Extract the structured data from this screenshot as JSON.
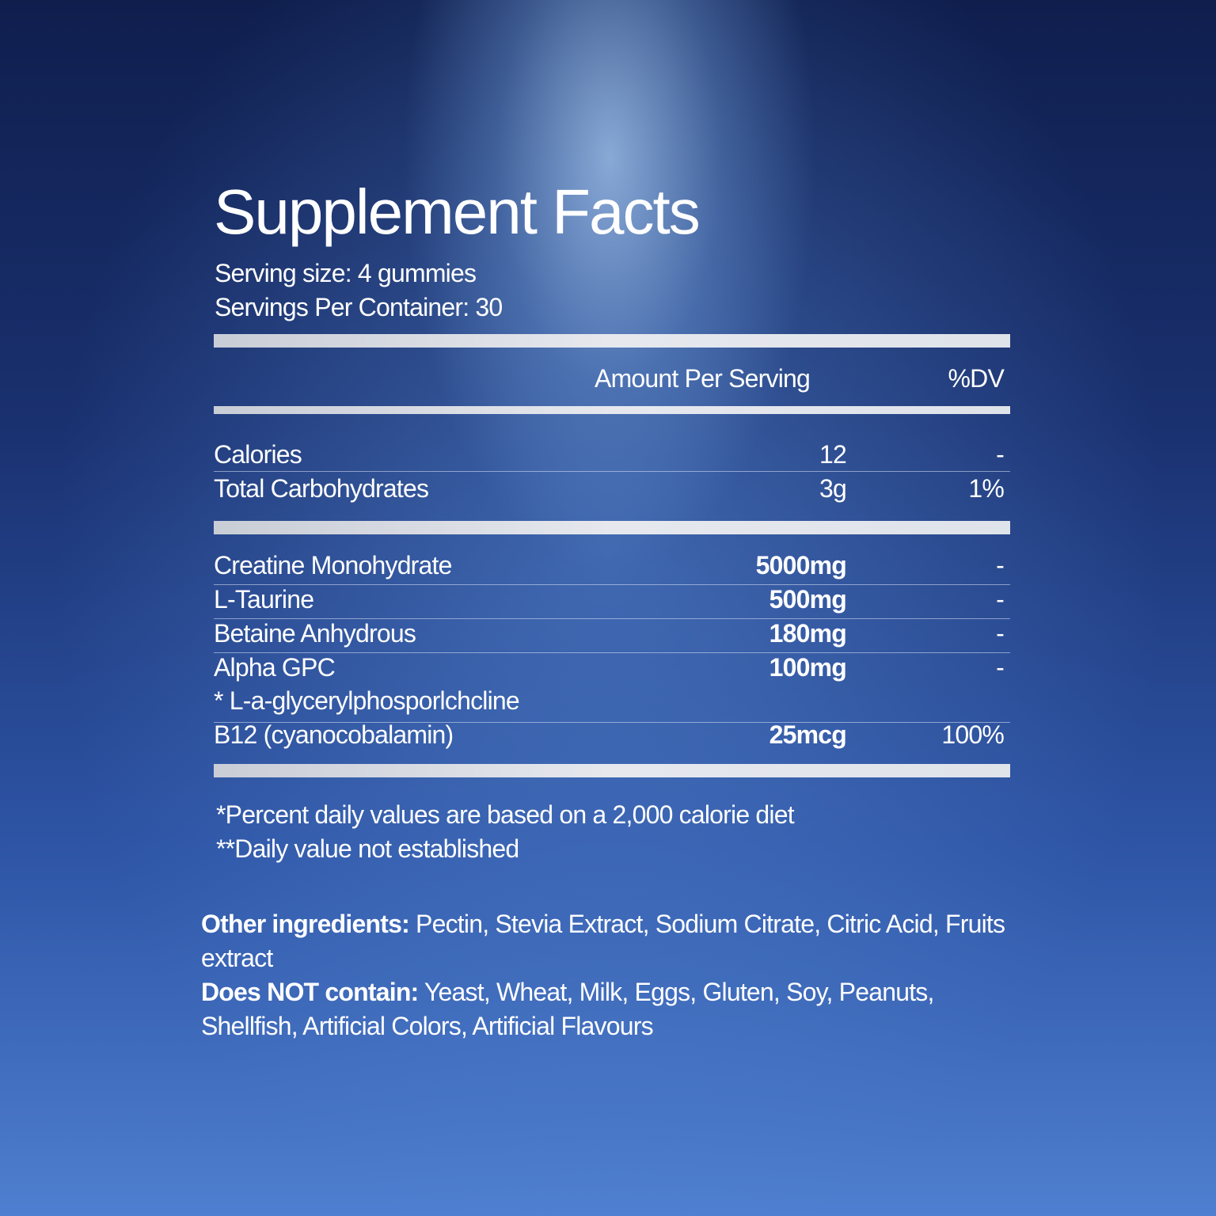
{
  "title": "Supplement Facts",
  "serving_size": "Serving size: 4 gummies",
  "servings_per_container": "Servings Per Container: 30",
  "header": {
    "amount": "Amount Per Serving",
    "dv": "%DV"
  },
  "basic_rows": [
    {
      "name": "Calories",
      "amount": "12",
      "dv": "-"
    },
    {
      "name": "Total Carbohydrates",
      "amount": "3g",
      "dv": "1%"
    }
  ],
  "ingredient_rows": [
    {
      "name": "Creatine Monohydrate",
      "amount": "5000mg",
      "dv": "-"
    },
    {
      "name": "L-Taurine",
      "amount": "500mg",
      "dv": "-"
    },
    {
      "name": "Betaine Anhydrous",
      "amount": "180mg",
      "dv": "-"
    },
    {
      "name": "Alpha GPC",
      "amount": "100mg",
      "dv": "-",
      "note": "* L-a-glycerylphosporlchcline"
    },
    {
      "name": "B12",
      "name_suffix": " (cyanocobalamin)",
      "amount": "25mcg",
      "dv": "100%"
    }
  ],
  "footnotes": [
    "*Percent daily values are based on a 2,000 calorie diet",
    "**Daily value not established"
  ],
  "other_ingredients": {
    "label": "Other ingredients:",
    "text": " Pectin, Stevia Extract, Sodium Citrate, Citric Acid, Fruits extract"
  },
  "does_not_contain": {
    "label": "Does NOT contain:",
    "text": " Yeast, Wheat, Milk, Eggs, Gluten, Soy, Peanuts, Shellfish, Artificial Colors, Artificial Flavours"
  }
}
